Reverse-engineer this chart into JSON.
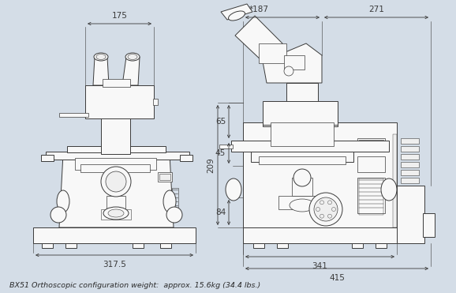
{
  "bg_color": "#d4dde7",
  "line_color": "#3a3a3a",
  "fig_width": 5.78,
  "fig_height": 3.71,
  "caption": "BX51 Orthoscopic configuration weight:  approx. 15.6kg (34.4 lbs.)",
  "dim_175": "175",
  "dim_3175": "317.5",
  "dim_187": "*187",
  "dim_271": "271",
  "dim_341": "341",
  "dim_415": "415",
  "dim_65": "65",
  "dim_45": "45",
  "dim_209": "209",
  "dim_84": "84"
}
